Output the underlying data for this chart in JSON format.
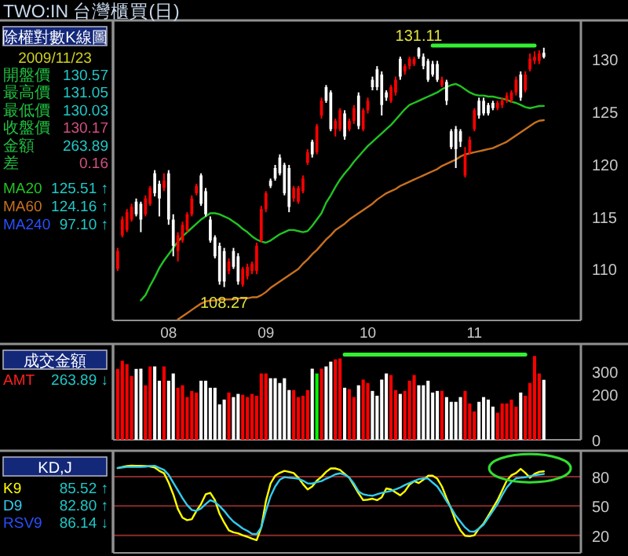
{
  "chart_data": [
    {
      "type": "candlestick",
      "title": "TWO:IN 台灣櫃買(日)",
      "subtitle": "除權對數K線圖",
      "categories": [
        null,
        null,
        null,
        null,
        null,
        null,
        null,
        null,
        null,
        null,
        null,
        "08",
        null,
        null,
        null,
        null,
        null,
        null,
        null,
        null,
        null,
        null,
        null,
        null,
        null,
        null,
        null,
        null,
        null,
        null,
        null,
        null,
        "09",
        null,
        null,
        null,
        null,
        null,
        null,
        null,
        null,
        null,
        null,
        null,
        null,
        null,
        null,
        null,
        null,
        null,
        null,
        null,
        null,
        null,
        "10",
        null,
        null,
        null,
        null,
        null,
        null,
        null,
        null,
        null,
        null,
        null,
        null,
        null,
        null,
        null,
        null,
        null,
        null,
        null,
        null,
        null,
        null,
        "11",
        null,
        null,
        null,
        null,
        null,
        null,
        null,
        null,
        null,
        null,
        null,
        null,
        null,
        null,
        null
      ],
      "ohlc": [
        [
          110.0,
          112.0,
          109.8,
          111.7
        ],
        [
          113.2,
          115.0,
          113.0,
          114.7
        ],
        [
          113.7,
          115.7,
          113.5,
          115.4
        ],
        [
          114.7,
          116.2,
          114.5,
          115.9
        ],
        [
          116.4,
          116.7,
          115.0,
          115.2
        ],
        [
          116.2,
          116.4,
          113.5,
          114.7
        ],
        [
          115.2,
          117.0,
          115.0,
          116.7
        ],
        [
          116.2,
          117.9,
          116.0,
          117.7
        ],
        [
          119.1,
          119.4,
          116.9,
          117.2
        ],
        [
          118.1,
          118.4,
          115.0,
          116.7
        ],
        [
          117.7,
          119.1,
          117.4,
          118.4
        ],
        [
          119.1,
          119.4,
          114.2,
          114.7
        ],
        [
          114.7,
          115.2,
          111.2,
          112.2
        ],
        [
          111.7,
          113.5,
          110.7,
          113.2
        ],
        [
          112.7,
          114.5,
          112.5,
          114.2
        ],
        [
          113.7,
          115.4,
          113.5,
          115.2
        ],
        [
          115.2,
          117.0,
          115.0,
          116.7
        ],
        [
          117.2,
          118.1,
          117.0,
          117.9
        ],
        [
          118.9,
          119.1,
          116.0,
          116.2
        ],
        [
          117.4,
          117.7,
          115.0,
          115.2
        ],
        [
          114.7,
          115.0,
          112.5,
          112.7
        ],
        [
          113.0,
          113.2,
          111.0,
          111.2
        ],
        [
          112.2,
          112.5,
          108.5,
          108.8
        ],
        [
          111.7,
          112.0,
          108.27,
          108.8
        ],
        [
          109.8,
          111.0,
          109.5,
          110.7
        ],
        [
          111.7,
          112.0,
          110.0,
          110.2
        ],
        [
          111.2,
          111.5,
          108.5,
          108.8
        ],
        [
          108.5,
          110.2,
          108.3,
          110.0
        ],
        [
          109.3,
          110.5,
          109.0,
          110.2
        ],
        [
          109.8,
          110.7,
          109.5,
          110.5
        ],
        [
          109.8,
          112.5,
          109.5,
          112.2
        ],
        [
          112.7,
          116.0,
          112.5,
          115.7
        ],
        [
          115.7,
          117.4,
          115.4,
          117.2
        ],
        [
          118.4,
          118.6,
          117.7,
          117.9
        ],
        [
          119.6,
          119.9,
          118.4,
          118.6
        ],
        [
          120.6,
          120.9,
          118.9,
          119.1
        ],
        [
          119.9,
          120.1,
          117.0,
          117.2
        ],
        [
          119.6,
          119.9,
          115.4,
          115.9
        ],
        [
          116.7,
          117.9,
          116.4,
          117.7
        ],
        [
          116.4,
          117.9,
          116.2,
          117.7
        ],
        [
          117.4,
          118.9,
          117.2,
          118.6
        ],
        [
          120.1,
          121.4,
          119.9,
          121.1
        ],
        [
          122.1,
          122.3,
          120.6,
          120.9
        ],
        [
          121.1,
          123.8,
          120.9,
          123.6
        ],
        [
          124.6,
          126.3,
          124.3,
          126.0
        ],
        [
          127.3,
          127.5,
          125.8,
          126.0
        ],
        [
          126.8,
          127.0,
          123.1,
          123.3
        ],
        [
          123.3,
          124.3,
          122.6,
          124.1
        ],
        [
          123.3,
          125.3,
          123.1,
          125.1
        ],
        [
          124.8,
          125.1,
          122.3,
          122.6
        ],
        [
          123.3,
          124.3,
          123.1,
          124.1
        ],
        [
          124.1,
          125.6,
          123.8,
          125.3
        ],
        [
          126.5,
          126.8,
          123.3,
          123.6
        ],
        [
          123.3,
          125.3,
          123.1,
          125.1
        ],
        [
          125.1,
          126.3,
          124.8,
          126.0
        ],
        [
          128.0,
          128.3,
          127.0,
          127.3
        ],
        [
          129.0,
          129.3,
          127.0,
          127.3
        ],
        [
          128.5,
          128.8,
          124.6,
          125.6
        ],
        [
          126.8,
          127.0,
          126.0,
          126.3
        ],
        [
          126.0,
          127.5,
          125.8,
          127.3
        ],
        [
          126.8,
          128.3,
          126.5,
          128.0
        ],
        [
          130.0,
          130.2,
          128.0,
          128.3
        ],
        [
          128.8,
          129.5,
          128.5,
          129.3
        ],
        [
          129.3,
          130.2,
          129.0,
          130.0
        ],
        [
          129.5,
          130.2,
          129.3,
          130.0
        ],
        [
          131.0,
          131.11,
          130.0,
          130.2
        ],
        [
          130.2,
          130.5,
          129.0,
          129.3
        ],
        [
          129.8,
          130.0,
          127.8,
          128.0
        ],
        [
          129.5,
          129.8,
          128.3,
          128.5
        ],
        [
          129.5,
          129.8,
          127.8,
          128.0
        ],
        [
          127.5,
          128.3,
          127.3,
          128.0
        ],
        [
          127.8,
          128.0,
          125.6,
          126.0
        ],
        [
          123.1,
          123.3,
          121.4,
          121.6
        ],
        [
          123.3,
          123.6,
          119.6,
          121.4
        ],
        [
          123.1,
          123.3,
          121.6,
          122.1
        ],
        [
          118.9,
          121.6,
          118.7,
          120.9
        ],
        [
          121.1,
          122.6,
          120.9,
          122.3
        ],
        [
          123.3,
          125.3,
          123.1,
          125.1
        ],
        [
          126.0,
          126.3,
          124.3,
          124.6
        ],
        [
          126.0,
          126.3,
          124.6,
          124.8
        ],
        [
          125.6,
          125.8,
          124.6,
          124.8
        ],
        [
          125.8,
          126.0,
          125.1,
          125.3
        ],
        [
          125.3,
          126.0,
          125.1,
          125.8
        ],
        [
          125.6,
          126.3,
          125.3,
          126.0
        ],
        [
          126.0,
          126.8,
          125.8,
          126.5
        ],
        [
          126.0,
          127.0,
          125.8,
          126.8
        ],
        [
          126.8,
          128.3,
          126.5,
          128.0
        ],
        [
          128.5,
          128.8,
          126.0,
          126.3
        ],
        [
          127.0,
          128.8,
          126.8,
          128.5
        ],
        [
          129.0,
          130.5,
          128.8,
          130.0
        ],
        [
          129.8,
          130.7,
          129.5,
          130.2
        ],
        [
          129.8,
          130.8,
          129.5,
          130.5
        ],
        [
          130.57,
          131.05,
          130.03,
          130.17
        ]
      ],
      "ylim": [
        105.1,
        133.5
      ],
      "yticks": [
        110,
        115,
        120,
        125,
        130
      ],
      "series": [
        {
          "name": "MA20",
          "type": "line",
          "color": "#22c322",
          "values": [
            null,
            null,
            null,
            null,
            null,
            107.0,
            107.5,
            108.4,
            109.2,
            110.1,
            110.8,
            111.4,
            112.0,
            112.6,
            113.1,
            113.5,
            113.9,
            114.3,
            114.7,
            115.0,
            115.3,
            115.3,
            115.2,
            115.0,
            114.8,
            114.5,
            114.2,
            113.8,
            113.5,
            113.1,
            112.8,
            112.6,
            112.5,
            112.7,
            113.0,
            113.3,
            113.5,
            113.7,
            113.7,
            113.6,
            113.5,
            113.6,
            114.1,
            114.7,
            115.3,
            116.3,
            117.0,
            117.8,
            118.5,
            119.1,
            119.6,
            120.2,
            120.7,
            121.2,
            121.7,
            122.1,
            122.5,
            122.9,
            123.3,
            123.7,
            124.2,
            124.7,
            125.2,
            125.6,
            125.8,
            126.0,
            126.2,
            126.4,
            126.6,
            126.8,
            127.1,
            127.3,
            127.5,
            127.6,
            127.4,
            127.1,
            126.8,
            126.6,
            126.5,
            126.5,
            126.4,
            126.4,
            126.3,
            126.2,
            126.1,
            125.9,
            125.8,
            125.6,
            125.4,
            125.3,
            125.4,
            125.5,
            125.51
          ]
        },
        {
          "name": "MA60",
          "type": "line",
          "color": "#c87020",
          "values": [
            null,
            null,
            null,
            null,
            null,
            null,
            null,
            null,
            null,
            null,
            null,
            null,
            null,
            105.2,
            105.5,
            105.8,
            106.1,
            106.4,
            106.7,
            106.9,
            107.0,
            107.0,
            107.1,
            107.1,
            107.1,
            107.1,
            107.2,
            107.2,
            107.2,
            107.3,
            107.3,
            107.5,
            107.8,
            108.2,
            108.5,
            108.8,
            109.1,
            109.4,
            109.7,
            110.0,
            110.5,
            110.9,
            111.4,
            111.8,
            112.3,
            112.8,
            113.2,
            113.7,
            114.0,
            114.3,
            114.7,
            115.0,
            115.3,
            115.6,
            115.9,
            116.2,
            116.6,
            116.9,
            117.2,
            117.4,
            117.6,
            117.9,
            118.1,
            118.3,
            118.5,
            118.7,
            118.9,
            119.1,
            119.3,
            119.5,
            119.8,
            120.0,
            120.2,
            120.4,
            120.7,
            120.9,
            121.0,
            121.1,
            121.2,
            121.3,
            121.4,
            121.5,
            121.7,
            121.9,
            122.1,
            122.4,
            122.7,
            123.0,
            123.3,
            123.6,
            123.9,
            124.1,
            124.16
          ]
        },
        {
          "type": "line",
          "color": "#33ee33",
          "values": [
            null,
            null,
            null,
            null,
            null,
            null,
            null,
            null,
            null,
            null,
            null,
            null,
            null,
            null,
            null,
            null,
            null,
            null,
            null,
            null,
            null,
            null,
            null,
            null,
            null,
            null,
            null,
            null,
            null,
            null,
            null,
            null,
            null,
            null,
            null,
            null,
            null,
            null,
            null,
            null,
            null,
            null,
            null,
            null,
            null,
            null,
            null,
            null,
            null,
            null,
            null,
            null,
            null,
            null,
            null,
            null,
            null,
            null,
            null,
            null,
            null,
            null,
            null,
            null,
            null,
            null,
            null,
            null,
            131.25,
            131.25,
            131.25,
            131.25,
            131.25,
            131.25,
            131.25,
            131.25,
            131.25,
            131.25,
            131.25,
            131.25,
            131.25,
            131.25,
            131.25,
            131.25,
            131.25,
            131.25,
            131.25,
            131.25,
            131.25,
            131.25,
            131.25,
            null,
            null
          ]
        }
      ],
      "legend": "left",
      "annotations": [
        "2009/11/23",
        "開盤價",
        "130.57",
        "最高價",
        "131.05",
        "最低價",
        "130.03",
        "收盤價",
        "130.17",
        "金額",
        "263.89",
        "差",
        "0.16",
        "125.51 ↑",
        "124.16 ↑",
        "MA240",
        "97.10 ↑",
        {
          "text": "131.11",
          "y": 131.11
        },
        {
          "text": "108.27",
          "y": 108.27
        }
      ]
    },
    {
      "type": "bar",
      "title": "成交金額",
      "categories": [
        null,
        null,
        null,
        null,
        null,
        null,
        null,
        null,
        null,
        null,
        null,
        null,
        null,
        null,
        null,
        null,
        null,
        null,
        null,
        null,
        null,
        null,
        null,
        null,
        null,
        null,
        null,
        null,
        null,
        null,
        null,
        null,
        null,
        null,
        null,
        null,
        null,
        null,
        null,
        null,
        null,
        null,
        null,
        null,
        null,
        null,
        null,
        null,
        null,
        null,
        null,
        null,
        null,
        null,
        null,
        null,
        null,
        null,
        null,
        null,
        null,
        null,
        null,
        null,
        null,
        null,
        null,
        null,
        null,
        null,
        null,
        null,
        null,
        null,
        null,
        null,
        null,
        null,
        null,
        null,
        null,
        null,
        null,
        null,
        null,
        null,
        null,
        null,
        null,
        null,
        null,
        null,
        null
      ],
      "series": [
        {
          "type": "bar",
          "values": [
            312,
            348,
            333,
            281,
            312,
            313,
            240,
            323,
            323,
            260,
            323,
            260,
            292,
            229,
            240,
            188,
            215,
            208,
            260,
            260,
            229,
            229,
            156,
            177,
            208,
            188,
            202,
            198,
            188,
            202,
            194,
            292,
            292,
            271,
            271,
            250,
            271,
            219,
            219,
            188,
            194,
            219,
            313,
            292,
            313,
            323,
            344,
            354,
            358,
            229,
            223,
            188,
            240,
            265,
            250,
            215,
            194,
            265,
            292,
            285,
            219,
            202,
            215,
            260,
            285,
            240,
            240,
            260,
            208,
            215,
            215,
            188,
            167,
            167,
            188,
            215,
            160,
            125,
            167,
            188,
            177,
            146,
            119,
            160,
            160,
            177,
            146,
            208,
            194,
            250,
            369,
            292,
            263.89
          ],
          "colors": [
            "#ff0000",
            "#ff0000",
            "#ff0000",
            "#ff0000",
            "#ffffff",
            "#ffffff",
            "#ff0000",
            "#ff0000",
            "#ffffff",
            "#ffffff",
            "#ff0000",
            "#ffffff",
            "#ffffff",
            "#ff0000",
            "#ff0000",
            "#ff0000",
            "#ff0000",
            "#ff0000",
            "#ffffff",
            "#ffffff",
            "#ffffff",
            "#ffffff",
            "#ffffff",
            "#ffffff",
            "#ff0000",
            "#ffffff",
            "#ffffff",
            "#ff0000",
            "#ff0000",
            "#ff0000",
            "#ff0000",
            "#ff0000",
            "#ff0000",
            "#ffffff",
            "#ffffff",
            "#ffffff",
            "#ffffff",
            "#ffffff",
            "#ff0000",
            "#ff0000",
            "#ff0000",
            "#ff0000",
            "#ffffff",
            "#00ff00",
            "#ff0000",
            "#ffffff",
            "#ffffff",
            "#ff0000",
            "#ff0000",
            "#ffffff",
            "#ff0000",
            "#ff0000",
            "#ffffff",
            "#ff0000",
            "#ff0000",
            "#ffffff",
            "#ffffff",
            "#ffffff",
            "#ffffff",
            "#ff0000",
            "#ff0000",
            "#ffffff",
            "#ff0000",
            "#ff0000",
            "#ff0000",
            "#ffffff",
            "#ffffff",
            "#ffffff",
            "#ffffff",
            "#ffffff",
            "#ff0000",
            "#ffffff",
            "#ffffff",
            "#ffffff",
            "#ffffff",
            "#ff0000",
            "#ff0000",
            "#ff0000",
            "#ffffff",
            "#ffffff",
            "#ffffff",
            "#ffffff",
            "#ff0000",
            "#ff0000",
            "#ff0000",
            "#ff0000",
            "#ff0000",
            "#ffffff",
            "#ff0000",
            "#ff0000",
            "#ff0000",
            "#ff0000",
            "#ffffff"
          ]
        },
        {
          "type": "line",
          "color": "#33ee33",
          "values": [
            null,
            null,
            null,
            null,
            null,
            null,
            null,
            null,
            null,
            null,
            null,
            null,
            null,
            null,
            null,
            null,
            null,
            null,
            null,
            null,
            null,
            null,
            null,
            null,
            null,
            null,
            null,
            null,
            null,
            null,
            null,
            null,
            null,
            null,
            null,
            null,
            null,
            null,
            null,
            null,
            null,
            null,
            null,
            null,
            null,
            null,
            null,
            null,
            null,
            375,
            375,
            375,
            375,
            375,
            375,
            375,
            375,
            375,
            375,
            375,
            375,
            375,
            375,
            375,
            375,
            375,
            375,
            375,
            375,
            375,
            375,
            375,
            375,
            375,
            375,
            375,
            375,
            375,
            375,
            375,
            375,
            375,
            375,
            375,
            375,
            375,
            375,
            375,
            375,
            null,
            null,
            null,
            null
          ]
        }
      ],
      "ylim": [
        0,
        415
      ],
      "yticks": [
        0,
        200,
        300
      ],
      "annotations": [
        "AMT",
        "263.89 ↓"
      ]
    },
    {
      "type": "line",
      "title": "KD,J",
      "categories": [
        null,
        null,
        null,
        null,
        null,
        null,
        null,
        null,
        null,
        null,
        null,
        null,
        null,
        null,
        null,
        null,
        null,
        null,
        null,
        null,
        null,
        null,
        null,
        null,
        null,
        null,
        null,
        null,
        null,
        null,
        null,
        null,
        null,
        null,
        null,
        null,
        null,
        null,
        null,
        null,
        null,
        null,
        null,
        null,
        null,
        null,
        null,
        null,
        null,
        null,
        null,
        null,
        null,
        null,
        null,
        null,
        null,
        null,
        null,
        null,
        null,
        null,
        null,
        null,
        null,
        null,
        null,
        null,
        null,
        null,
        null,
        null,
        null,
        null,
        null,
        null,
        null,
        null,
        null,
        null,
        null,
        null,
        null,
        null,
        null,
        null,
        null,
        null,
        null,
        null,
        null,
        null,
        null
      ],
      "series": [
        {
          "name": "K9",
          "color": "#ffff00",
          "values": [
            88.8,
            90,
            91,
            91.4,
            91.2,
            91.2,
            91,
            90.5,
            89.5,
            86,
            83.6,
            74,
            62,
            47,
            38,
            35.5,
            36.5,
            45,
            52,
            62,
            63.5,
            56,
            42,
            33,
            25,
            23,
            22,
            20,
            18.5,
            16.5,
            15,
            28,
            55,
            73,
            81,
            84,
            86,
            85,
            83.8,
            79,
            72.5,
            67,
            70,
            76,
            80,
            85,
            88.5,
            88.5,
            87,
            83,
            79,
            71,
            63,
            56,
            56.5,
            57.5,
            56,
            59,
            68,
            67,
            64,
            61,
            65,
            72,
            75.5,
            73.5,
            77,
            81,
            81,
            78,
            70,
            58,
            47,
            34,
            25,
            19.5,
            19,
            20,
            27,
            32,
            40,
            48,
            56,
            66,
            76,
            81.5,
            83.8,
            88,
            84,
            79,
            83,
            85,
            85.52
          ]
        },
        {
          "name": "D9",
          "color": "#33ccee",
          "values": [
            89,
            89.5,
            90,
            90,
            90,
            90,
            90.3,
            91,
            91.2,
            89,
            87,
            82,
            74,
            66,
            58,
            51,
            46,
            45,
            47.5,
            52,
            56,
            54,
            50,
            45,
            39,
            34,
            30.5,
            27,
            24.5,
            21.5,
            21.1,
            28,
            45,
            60,
            70,
            77,
            79.5,
            79,
            78.6,
            78,
            76,
            73.2,
            73,
            74.5,
            75.5,
            78,
            80,
            82.5,
            83.5,
            82,
            79,
            73,
            65,
            62,
            61,
            60.5,
            62,
            63.5,
            64.5,
            65.5,
            67,
            69,
            71.5,
            73.5,
            75.5,
            77.5,
            78.4,
            78.2,
            74,
            70,
            63,
            55,
            48,
            40,
            34,
            28,
            24,
            23.7,
            27,
            31,
            38,
            45,
            52,
            61,
            69,
            74.5,
            78.4,
            79,
            79.4,
            80.5,
            81.5,
            82.3,
            82.8
          ]
        }
      ],
      "ylim": [
        2,
        105
      ],
      "yticks": [
        20,
        50,
        80
      ],
      "grid": "y",
      "legend": "left",
      "annotations": [
        "85.52 ↑",
        "82.80 ↑",
        "RSV9",
        "86.14 ↓"
      ]
    }
  ]
}
